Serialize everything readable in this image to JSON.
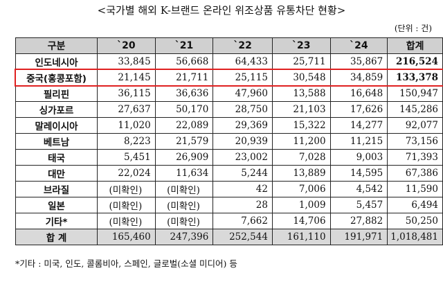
{
  "title": "<국가별 해외 K-브랜드 온라인 위조상품 유통차단 현황>",
  "unit": "(단위 : 건)",
  "table": {
    "header": [
      "구분",
      "`20",
      "`21",
      "`22",
      "`23",
      "`24",
      "합계"
    ],
    "rows": [
      [
        "인도네시아",
        "33,845",
        "56,668",
        "64,433",
        "25,711",
        "35,867",
        "216,524"
      ],
      [
        "중국(홍콩포함)",
        "21,145",
        "21,711",
        "25,115",
        "30,548",
        "34,859",
        "133,378"
      ],
      [
        "필리핀",
        "36,115",
        "36,636",
        "47,960",
        "13,588",
        "16,648",
        "150,947"
      ],
      [
        "싱가포르",
        "27,637",
        "50,170",
        "28,750",
        "21,103",
        "17,626",
        "145,286"
      ],
      [
        "말레이시아",
        "11,020",
        "22,089",
        "29,369",
        "15,322",
        "14,277",
        "92,077"
      ],
      [
        "베트남",
        "8,223",
        "21,579",
        "20,939",
        "11,200",
        "11,215",
        "73,156"
      ],
      [
        "태국",
        "5,451",
        "26,909",
        "23,002",
        "7,028",
        "9,003",
        "71,393"
      ],
      [
        "대만",
        "22,024",
        "11,634",
        "5,244",
        "13,889",
        "14,595",
        "67,386"
      ],
      [
        "브라질",
        "(미확인)",
        "(미확인)",
        "42",
        "7,006",
        "4,542",
        "11,590"
      ],
      [
        "일본",
        "(미확인)",
        "(미확인)",
        "28",
        "1,009",
        "5,457",
        "6,494"
      ],
      [
        "기타*",
        "(미확인)",
        "(미확인)",
        "7,662",
        "14,706",
        "27,882",
        "50,250"
      ]
    ],
    "total": [
      "합 계",
      "165,460",
      "247,396",
      "252,544",
      "161,110",
      "191,971",
      "1,018,481"
    ]
  },
  "footnote": "*기타 : 미국, 인도, 콜롬비아, 스페인, 글로벌(소셜 미디어) 등"
}
